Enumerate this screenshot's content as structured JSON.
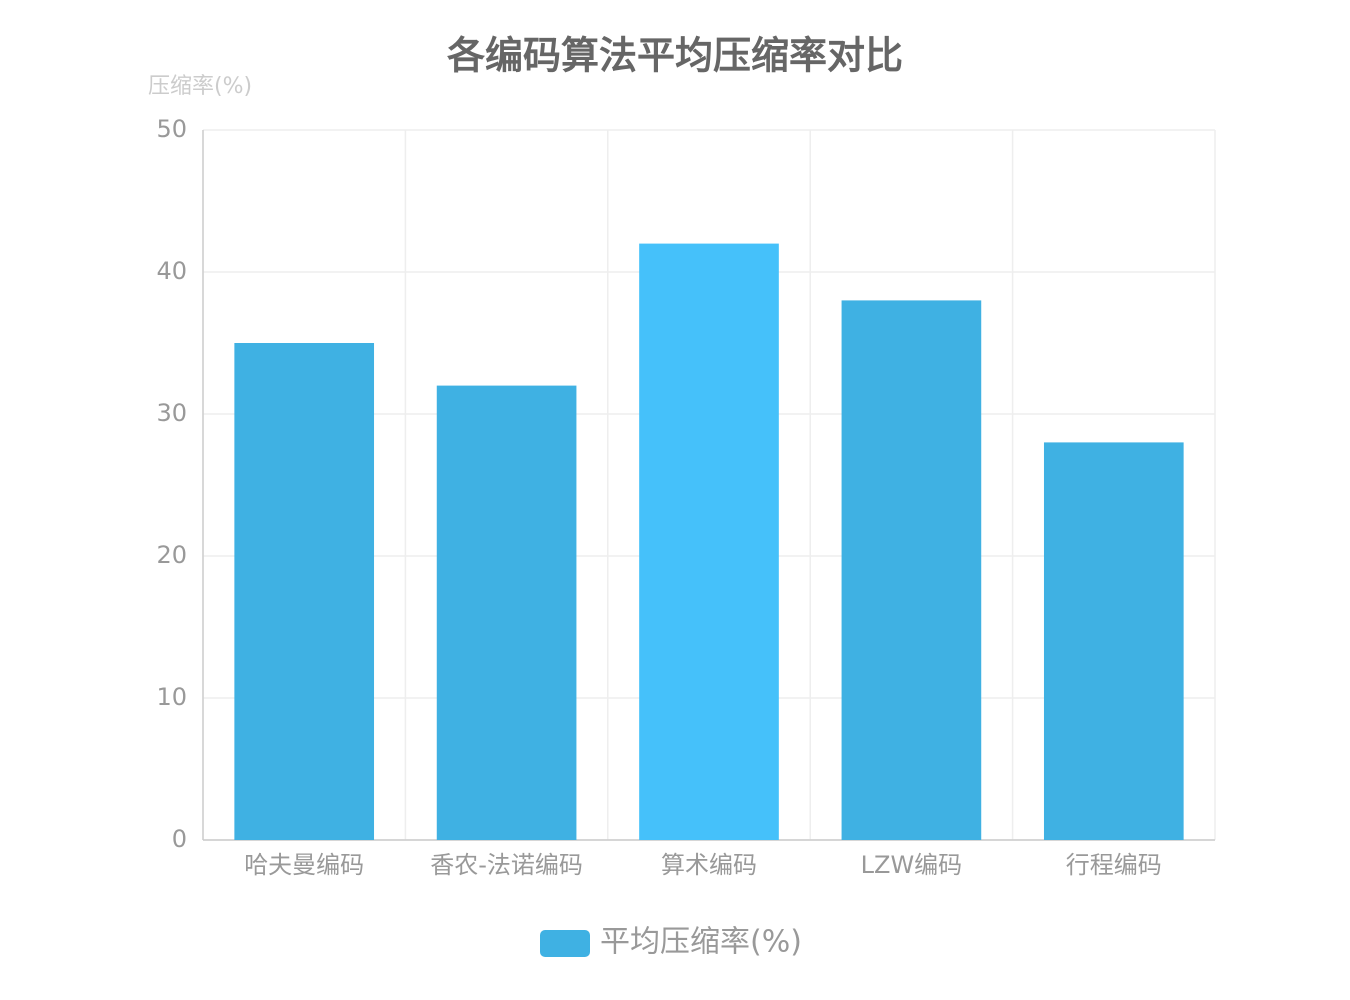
{
  "chart_data": {
    "type": "bar",
    "title": "各编码算法平均压缩率对比",
    "y_label": "压缩率(%)",
    "categories": [
      "哈夫曼编码",
      "香农-法诺编码",
      "算术编码",
      "LZW编码",
      "行程编码"
    ],
    "series": [
      {
        "name": "平均压缩率(%)",
        "color": "#3fb1e3",
        "point_colors": [
          "#3fb1e3",
          "#3fb1e3",
          "#45c1fa",
          "#3fb1e3",
          "#3fb1e3"
        ],
        "values": [
          35,
          32,
          42,
          38,
          28
        ]
      }
    ],
    "ylim": [
      0,
      50
    ],
    "yticks": [
      0,
      10,
      20,
      30,
      40,
      50
    ],
    "grid": true,
    "legend": "bottom"
  }
}
